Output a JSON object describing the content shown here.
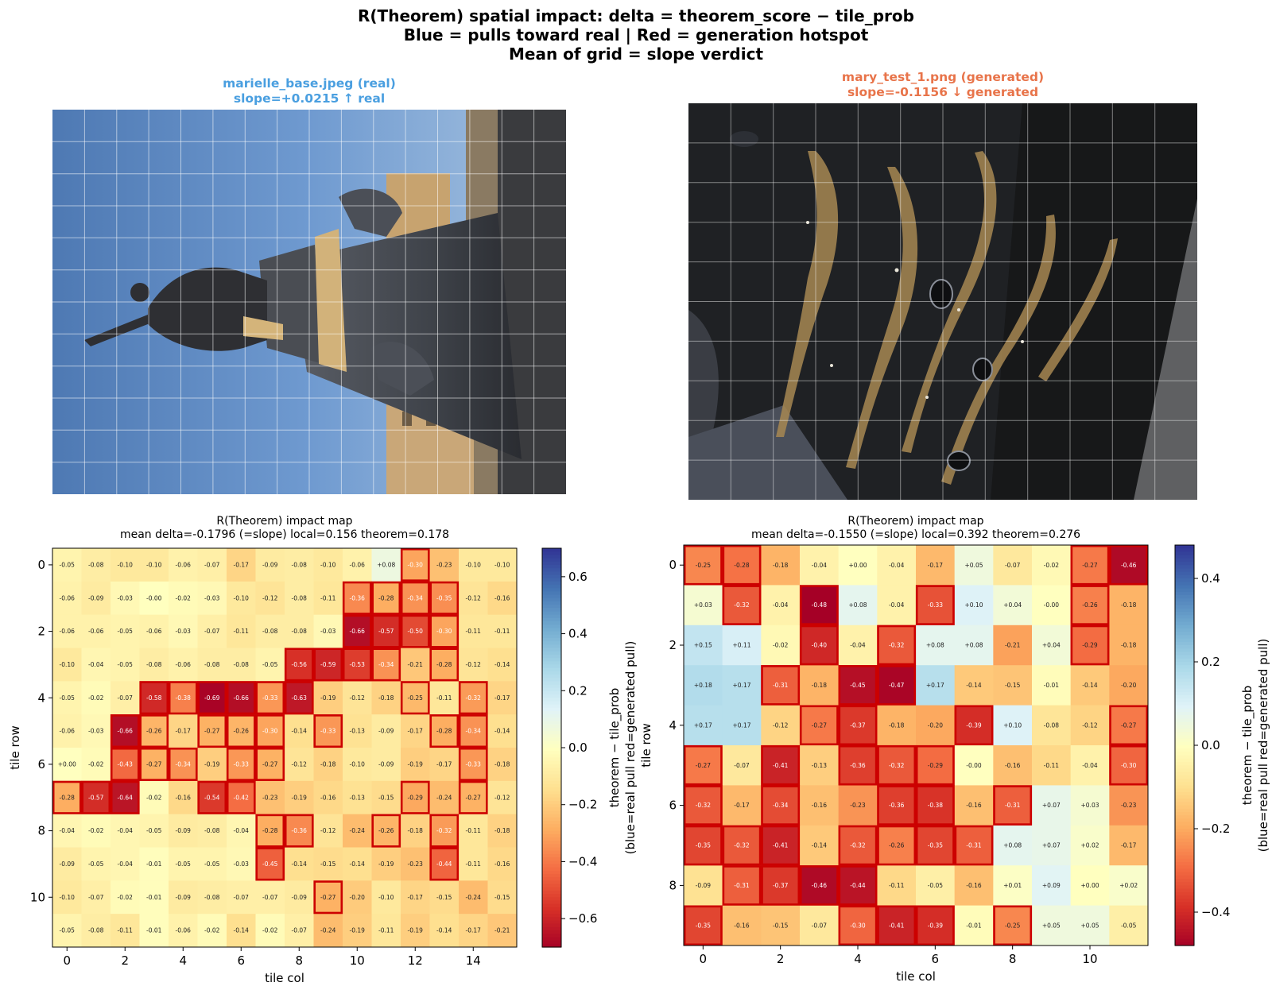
{
  "suptitle": {
    "line1": "R(Theorem) spatial impact: delta = theorem_score − tile_prob",
    "line2": "Blue = pulls toward real  |  Red = generation hotspot",
    "line3": "Mean of grid = slope verdict"
  },
  "colors": {
    "real_title": "#4a9fe0",
    "generated_title": "#e8744a",
    "hotspot_outline": "#cc0000",
    "photo_grid": "#ffffff"
  },
  "panels": {
    "left_image": {
      "title_line1": "marielle_base.jpeg  (real)",
      "title_line2": "slope=+0.0215  ↑ real"
    },
    "right_image": {
      "title_line1": "mary_test_1.png  (generated)",
      "title_line2": "slope=-0.1156  ↓ generated"
    },
    "left_heatmap": {
      "title_line1": "R(Theorem) impact map",
      "title_line2": "mean delta=-0.1796 (=slope)  local=0.156  theorem=0.178"
    },
    "right_heatmap": {
      "title_line1": "R(Theorem) impact map",
      "title_line2": "mean delta=-0.1550 (=slope)  local=0.392  theorem=0.276"
    }
  },
  "chart_data": [
    {
      "type": "heatmap",
      "xlabel": "tile col",
      "ylabel": "tile row",
      "xticks": [
        0,
        2,
        4,
        6,
        8,
        10,
        12,
        14
      ],
      "yticks": [
        0,
        2,
        4,
        6,
        8,
        10
      ],
      "colorbar": {
        "label_line1": "theorem − tile_prob",
        "label_line2": "(blue=real pull  red=generated pull)",
        "vmin": -0.7,
        "vmax": 0.7,
        "ticks": [
          0.6,
          0.4,
          0.2,
          0.0,
          -0.2,
          -0.4,
          -0.6
        ],
        "tick_labels": [
          "0.6",
          "0.4",
          "0.2",
          "0.0",
          "−0.2",
          "−0.4",
          "−0.6"
        ],
        "colormap": "RdYlBu"
      },
      "highlight_threshold": -0.25,
      "rows": [
        [
          "-0.05",
          "-0.08",
          "-0.10",
          "-0.10",
          "-0.06",
          "-0.07",
          "-0.17",
          "-0.09",
          "-0.08",
          "-0.10",
          "-0.06",
          "+0.08",
          "-0.30",
          "-0.23",
          "-0.10",
          "-0.10"
        ],
        [
          "-0.06",
          "-0.09",
          "-0.03",
          "-0.00",
          "-0.02",
          "-0.03",
          "-0.10",
          "-0.12",
          "-0.08",
          "-0.11",
          "-0.36",
          "-0.28",
          "-0.34",
          "-0.35",
          "-0.12",
          "-0.16"
        ],
        [
          "-0.06",
          "-0.06",
          "-0.05",
          "-0.06",
          "-0.03",
          "-0.07",
          "-0.11",
          "-0.08",
          "-0.08",
          "-0.03",
          "-0.66",
          "-0.57",
          "-0.50",
          "-0.30",
          "-0.11",
          "-0.11"
        ],
        [
          "-0.10",
          "-0.04",
          "-0.05",
          "-0.08",
          "-0.06",
          "-0.08",
          "-0.08",
          "-0.05",
          "-0.56",
          "-0.59",
          "-0.53",
          "-0.34",
          "-0.21",
          "-0.28",
          "-0.12",
          "-0.14"
        ],
        [
          "-0.05",
          "-0.02",
          "-0.07",
          "-0.58",
          "-0.38",
          "-0.69",
          "-0.66",
          "-0.33",
          "-0.63",
          "-0.19",
          "-0.12",
          "-0.18",
          "-0.25",
          "-0.11",
          "-0.32",
          "-0.17"
        ],
        [
          "-0.06",
          "-0.03",
          "-0.66",
          "-0.26",
          "-0.17",
          "-0.27",
          "-0.26",
          "-0.30",
          "-0.14",
          "-0.33",
          "-0.13",
          "-0.09",
          "-0.17",
          "-0.28",
          "-0.34",
          "-0.14"
        ],
        [
          "+0.00",
          "-0.02",
          "-0.43",
          "-0.27",
          "-0.34",
          "-0.19",
          "-0.33",
          "-0.27",
          "-0.12",
          "-0.18",
          "-0.10",
          "-0.09",
          "-0.19",
          "-0.17",
          "-0.33",
          "-0.18"
        ],
        [
          "-0.28",
          "-0.57",
          "-0.64",
          "-0.02",
          "-0.16",
          "-0.54",
          "-0.42",
          "-0.23",
          "-0.19",
          "-0.16",
          "-0.13",
          "-0.15",
          "-0.29",
          "-0.24",
          "-0.27",
          "-0.12"
        ],
        [
          "-0.04",
          "-0.02",
          "-0.04",
          "-0.05",
          "-0.09",
          "-0.08",
          "-0.04",
          "-0.28",
          "-0.36",
          "-0.12",
          "-0.24",
          "-0.26",
          "-0.18",
          "-0.32",
          "-0.11",
          "-0.18"
        ],
        [
          "-0.09",
          "-0.05",
          "-0.04",
          "-0.01",
          "-0.05",
          "-0.05",
          "-0.03",
          "-0.45",
          "-0.14",
          "-0.15",
          "-0.14",
          "-0.19",
          "-0.23",
          "-0.44",
          "-0.11",
          "-0.16"
        ],
        [
          "-0.10",
          "-0.07",
          "-0.02",
          "-0.01",
          "-0.09",
          "-0.08",
          "-0.07",
          "-0.07",
          "-0.09",
          "-0.27",
          "-0.20",
          "-0.10",
          "-0.17",
          "-0.15",
          "-0.24",
          "-0.15"
        ],
        [
          "-0.05",
          "-0.08",
          "-0.11",
          "-0.01",
          "-0.06",
          "-0.02",
          "-0.14",
          "-0.02",
          "-0.07",
          "-0.24",
          "-0.19",
          "-0.11",
          "-0.19",
          "-0.14",
          "-0.17",
          "-0.21"
        ]
      ]
    },
    {
      "type": "heatmap",
      "xlabel": "tile col",
      "ylabel": "tile row",
      "xticks": [
        0,
        2,
        4,
        6,
        8,
        10
      ],
      "yticks": [
        0,
        2,
        4,
        6,
        8
      ],
      "colorbar": {
        "label_line1": "theorem − tile_prob",
        "label_line2": "(blue=real pull  red=generated pull)",
        "vmin": -0.48,
        "vmax": 0.48,
        "ticks": [
          0.4,
          0.2,
          0.0,
          -0.2,
          -0.4
        ],
        "tick_labels": [
          "0.4",
          "0.2",
          "0.0",
          "−0.2",
          "−0.4"
        ],
        "colormap": "RdYlBu"
      },
      "highlight_threshold": -0.25,
      "rows": [
        [
          "-0.25",
          "-0.28",
          "-0.18",
          "-0.04",
          "+0.00",
          "-0.04",
          "-0.17",
          "+0.05",
          "-0.07",
          "-0.02",
          "-0.27",
          "-0.46"
        ],
        [
          "+0.03",
          "-0.32",
          "-0.04",
          "-0.48",
          "+0.08",
          "-0.04",
          "-0.33",
          "+0.10",
          "+0.04",
          "-0.00",
          "-0.26",
          "-0.18"
        ],
        [
          "+0.15",
          "+0.11",
          "-0.02",
          "-0.40",
          "-0.04",
          "-0.32",
          "+0.08",
          "+0.08",
          "-0.21",
          "+0.04",
          "-0.29",
          "-0.18"
        ],
        [
          "+0.18",
          "+0.17",
          "-0.31",
          "-0.18",
          "-0.45",
          "-0.47",
          "+0.17",
          "-0.14",
          "-0.15",
          "-0.01",
          "-0.14",
          "-0.20"
        ],
        [
          "+0.17",
          "+0.17",
          "-0.12",
          "-0.27",
          "-0.37",
          "-0.18",
          "-0.20",
          "-0.39",
          "+0.10",
          "-0.08",
          "-0.12",
          "-0.27"
        ],
        [
          "-0.27",
          "-0.07",
          "-0.41",
          "-0.13",
          "-0.36",
          "-0.32",
          "-0.29",
          "-0.00",
          "-0.16",
          "-0.11",
          "-0.04",
          "-0.30"
        ],
        [
          "-0.32",
          "-0.17",
          "-0.34",
          "-0.16",
          "-0.23",
          "-0.36",
          "-0.38",
          "-0.16",
          "-0.31",
          "+0.07",
          "+0.03",
          "-0.23"
        ],
        [
          "-0.35",
          "-0.32",
          "-0.41",
          "-0.14",
          "-0.32",
          "-0.26",
          "-0.35",
          "-0.31",
          "+0.08",
          "+0.07",
          "+0.02",
          "-0.17"
        ],
        [
          "-0.09",
          "-0.31",
          "-0.37",
          "-0.46",
          "-0.44",
          "-0.11",
          "-0.05",
          "-0.16",
          "+0.01",
          "+0.09",
          "+0.00",
          "+0.02"
        ],
        [
          "-0.35",
          "-0.16",
          "-0.15",
          "-0.07",
          "-0.30",
          "-0.41",
          "-0.39",
          "-0.01",
          "-0.25",
          "+0.05",
          "+0.05",
          "-0.05"
        ]
      ]
    }
  ]
}
